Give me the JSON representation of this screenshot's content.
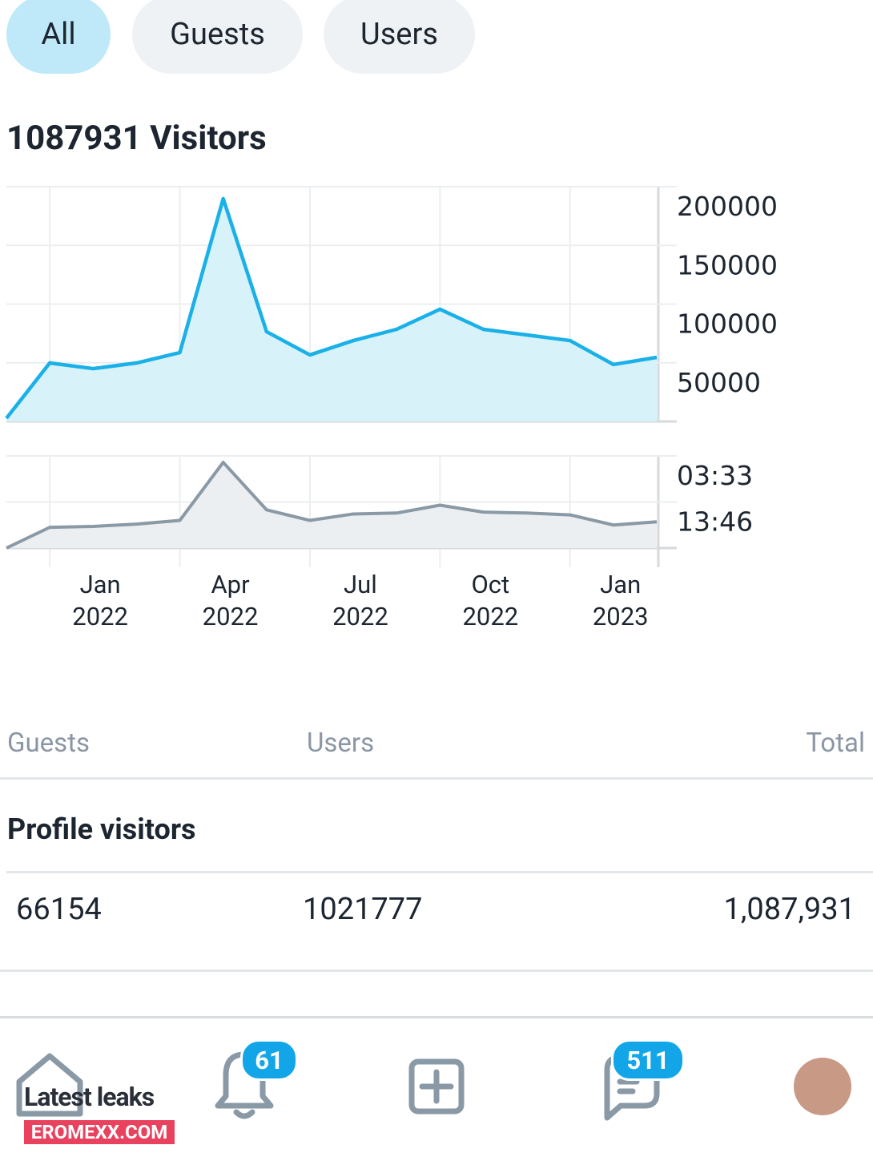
{
  "tabs": [
    "All",
    "Guests",
    "Users"
  ],
  "title": "1087931 Visitors",
  "chart_data": [
    {
      "type": "area",
      "color": "#1ab0e8",
      "fill": "#d8f2fa",
      "ylim": [
        0,
        200000
      ],
      "yticks": [
        200000,
        150000,
        100000,
        50000
      ],
      "values": [
        2700,
        49800,
        45000,
        49800,
        58700,
        189800,
        76500,
        56700,
        68900,
        78500,
        95600,
        78500,
        73700,
        68900,
        48500,
        54600
      ]
    },
    {
      "type": "area",
      "color": "#8a99a6",
      "fill": "#eceff1",
      "ylim": [
        0,
        2
      ],
      "yticks": [
        {
          "value": 2,
          "label": "03:33"
        },
        {
          "value": 1,
          "label": "13:46"
        }
      ],
      "categories": [
        null,
        "Jan 2022",
        null,
        null,
        "Apr 2022",
        null,
        null,
        "Jul 2022",
        null,
        null,
        "Oct 2022",
        null,
        null,
        "Jan 2023",
        null,
        null
      ],
      "values": [
        0,
        0.45,
        0.47,
        0.52,
        0.6,
        1.86,
        0.83,
        0.6,
        0.74,
        0.76,
        0.93,
        0.78,
        0.76,
        0.72,
        0.5,
        0.57
      ]
    }
  ],
  "table": {
    "headers": [
      "Guests",
      "Users",
      "Total"
    ],
    "section": "Profile visitors",
    "row": [
      "66154",
      "1021777",
      "1,087,931"
    ]
  },
  "nav": {
    "notifications": "61",
    "messages": "511"
  },
  "watermark": [
    "Latest leaks",
    "EROMEXX.COM"
  ]
}
